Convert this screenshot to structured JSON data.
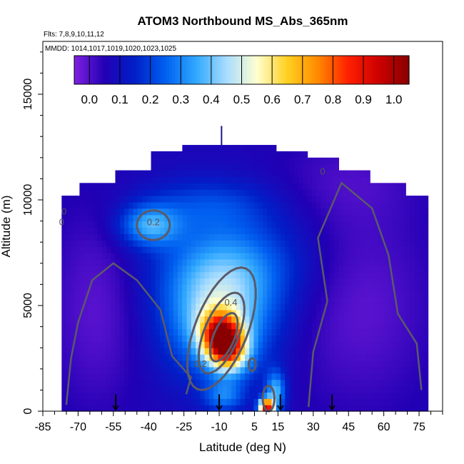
{
  "chart_data": {
    "type": "heatmap",
    "title": "ATOM3 Northbound MS_Abs_365nm",
    "flights_note": "Flts: 7,8,9,10,11,12",
    "dates_note": "MMDD: 1014,1017,1019,1020,1023,1025",
    "xlabel": "Latitude (deg N)",
    "ylabel": "Altitude (m)",
    "xlim": [
      -85,
      85
    ],
    "ylim": [
      0,
      17500
    ],
    "x_ticks": [
      -85,
      -70,
      -55,
      -40,
      -25,
      -10,
      5,
      15,
      30,
      45,
      60,
      75
    ],
    "y_ticks": [
      0,
      5000,
      10000,
      15000
    ],
    "colorbar": {
      "min": -0.05,
      "max": 1.05,
      "ticks": [
        0.0,
        0.1,
        0.2,
        0.3,
        0.4,
        0.5,
        0.6,
        0.7,
        0.8,
        0.9,
        1.0
      ],
      "tick_labels": [
        "0.0",
        "0.1",
        "0.2",
        "0.3",
        "0.4",
        "0.5",
        "0.6",
        "0.7",
        "0.8",
        "0.9",
        "1.0"
      ],
      "colors": [
        "#8020e0",
        "#2200b4",
        "#0020c8",
        "#0060f0",
        "#30a8ff",
        "#a8dcff",
        "#ffffd0",
        "#ffd020",
        "#ff8a00",
        "#ff2000",
        "#cc0000",
        "#880000"
      ]
    },
    "domain_lat": [
      -77,
      79
    ],
    "domain_alt": [
      0,
      12500
    ],
    "features": [
      {
        "type": "plume",
        "lat_center": -8,
        "alt_center": 3300,
        "peak_value": 0.95
      },
      {
        "type": "plume",
        "lat_center": 10,
        "alt_center": 200,
        "peak_value": 0.9
      },
      {
        "type": "layer",
        "lat_center": -38,
        "alt_center": 8800,
        "peak_value": 0.3
      }
    ],
    "contour_labels": [
      "0.4",
      "0.2",
      "0.2",
      "0",
      "0",
      "0"
    ],
    "marker_latitudes": [
      -54,
      -10,
      16,
      38
    ],
    "flight_marker_latitude": -9
  }
}
